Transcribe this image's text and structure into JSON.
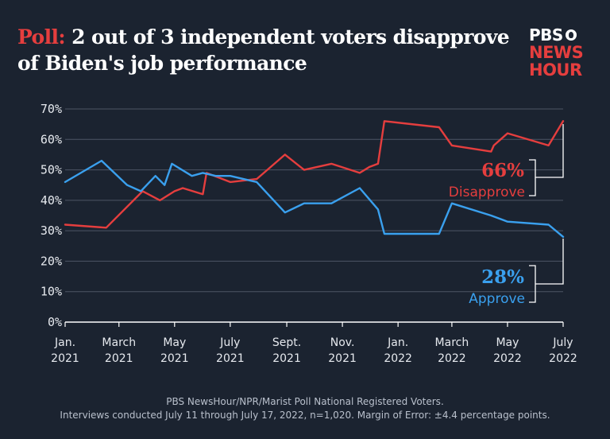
{
  "header": {
    "kicker": "Poll:",
    "headline": " 2 out of 3 independent voters disapprove of Biden's job performance"
  },
  "logo": {
    "line1": "PBS",
    "line2": "NEWS",
    "line3": "HOUR"
  },
  "colors": {
    "background": "#1b2330",
    "disapprove": "#e53e3e",
    "approve": "#3aa0ee",
    "grid": "#4c5564",
    "axis_text": "#e6e9ee"
  },
  "chart_data": {
    "type": "line",
    "title": "",
    "xlabel": "",
    "ylabel": "",
    "ylim": [
      0,
      70
    ],
    "yticks": [
      "0%",
      "10%",
      "20%",
      "30%",
      "40%",
      "50%",
      "60%",
      "70%"
    ],
    "xlim": [
      "2021-01-01",
      "2022-07-01"
    ],
    "xticks": [
      {
        "date": "2021-01-01",
        "line1": "Jan.",
        "line2": "2021"
      },
      {
        "date": "2021-03-01",
        "line1": "March",
        "line2": "2021"
      },
      {
        "date": "2021-05-01",
        "line1": "May",
        "line2": "2021"
      },
      {
        "date": "2021-07-01",
        "line1": "July",
        "line2": "2021"
      },
      {
        "date": "2021-09-01",
        "line1": "Sept.",
        "line2": "2021"
      },
      {
        "date": "2021-11-01",
        "line1": "Nov.",
        "line2": "2021"
      },
      {
        "date": "2022-01-01",
        "line1": "Jan.",
        "line2": "2022"
      },
      {
        "date": "2022-03-01",
        "line1": "March",
        "line2": "2022"
      },
      {
        "date": "2022-05-01",
        "line1": "May",
        "line2": "2022"
      },
      {
        "date": "2022-07-01",
        "line1": "July",
        "line2": "2022"
      }
    ],
    "grid": true,
    "series": [
      {
        "name": "Disapprove",
        "color": "#e53e3e",
        "end_label": "66%",
        "points": [
          [
            "2021-01-01",
            32
          ],
          [
            "2021-02-15",
            31
          ],
          [
            "2021-03-27",
            43
          ],
          [
            "2021-04-15",
            40
          ],
          [
            "2021-05-01",
            43
          ],
          [
            "2021-05-10",
            44
          ],
          [
            "2021-06-01",
            42
          ],
          [
            "2021-06-05",
            49
          ],
          [
            "2021-07-01",
            46
          ],
          [
            "2021-07-30",
            47
          ],
          [
            "2021-08-30",
            55
          ],
          [
            "2021-09-20",
            50
          ],
          [
            "2021-10-20",
            52
          ],
          [
            "2021-11-20",
            49
          ],
          [
            "2021-12-01",
            51
          ],
          [
            "2021-12-10",
            52
          ],
          [
            "2021-12-17",
            66
          ],
          [
            "2022-02-15",
            64
          ],
          [
            "2022-03-01",
            58
          ],
          [
            "2022-04-13",
            56
          ],
          [
            "2022-04-16",
            58
          ],
          [
            "2022-05-01",
            62
          ],
          [
            "2022-06-15",
            58
          ],
          [
            "2022-07-01",
            66
          ]
        ]
      },
      {
        "name": "Approve",
        "color": "#3aa0ee",
        "end_label": "28%",
        "points": [
          [
            "2021-01-01",
            46
          ],
          [
            "2021-02-10",
            53
          ],
          [
            "2021-03-10",
            45
          ],
          [
            "2021-03-25",
            43
          ],
          [
            "2021-04-10",
            48
          ],
          [
            "2021-04-20",
            45
          ],
          [
            "2021-04-28",
            52
          ],
          [
            "2021-05-20",
            48
          ],
          [
            "2021-06-01",
            49
          ],
          [
            "2021-06-15",
            48
          ],
          [
            "2021-07-01",
            48
          ],
          [
            "2021-07-30",
            46
          ],
          [
            "2021-08-30",
            36
          ],
          [
            "2021-09-20",
            39
          ],
          [
            "2021-10-20",
            39
          ],
          [
            "2021-11-20",
            44
          ],
          [
            "2021-12-10",
            37
          ],
          [
            "2021-12-17",
            29
          ],
          [
            "2022-02-15",
            29
          ],
          [
            "2022-03-01",
            39
          ],
          [
            "2022-04-13",
            35
          ],
          [
            "2022-05-01",
            33
          ],
          [
            "2022-06-15",
            32
          ],
          [
            "2022-07-01",
            28
          ]
        ]
      }
    ]
  },
  "annotations": {
    "disapprove": {
      "value": "66%",
      "label": "Disapprove"
    },
    "approve": {
      "value": "28%",
      "label": "Approve"
    }
  },
  "source": {
    "line1": "PBS NewsHour/NPR/Marist Poll National Registered Voters.",
    "line2": "Interviews conducted July 11 through July 17, 2022, n=1,020. Margin of Error: ±4.4 percentage points."
  }
}
